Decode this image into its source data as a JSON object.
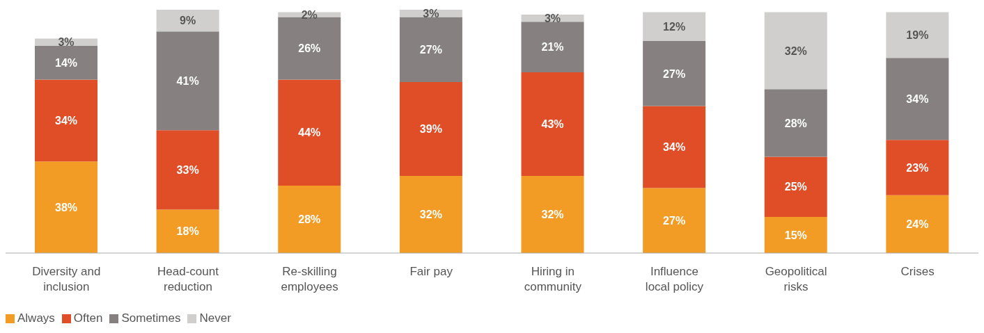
{
  "chart_data": {
    "type": "bar",
    "stacked": true,
    "legend": "bottom left",
    "categories": [
      "Diversity and inclusion",
      "Head-count reduction",
      "Re-skilling employees",
      "Fair pay",
      "Hiring in community",
      "Influence local policy",
      "Geopolitical risks",
      "Crises"
    ],
    "series": [
      {
        "name": "Always",
        "color": "#f39c25",
        "values": [
          38,
          18,
          28,
          32,
          32,
          27,
          15,
          24
        ],
        "value_labels": [
          "38%",
          "18%",
          "28%",
          "32%",
          "32%",
          "27%",
          "15%",
          "24%"
        ]
      },
      {
        "name": "Often",
        "color": "#e04e28",
        "values": [
          34,
          33,
          44,
          39,
          43,
          34,
          25,
          23
        ],
        "value_labels": [
          "34%",
          "33%",
          "44%",
          "39%",
          "43%",
          "34%",
          "25%",
          "23%"
        ]
      },
      {
        "name": "Sometimes",
        "color": "#868180",
        "values": [
          14,
          41,
          26,
          27,
          21,
          27,
          28,
          34
        ],
        "value_labels": [
          "14%",
          "41%",
          "26%",
          "27%",
          "21%",
          "27%",
          "28%",
          "34%"
        ]
      },
      {
        "name": "Never",
        "color": "#d0cfcd",
        "values": [
          3,
          9,
          2,
          3,
          3,
          12,
          32,
          19
        ],
        "value_labels": [
          "3%",
          "9%",
          "2%",
          "3%",
          "3%",
          "12%",
          "32%",
          "19%"
        ]
      }
    ]
  }
}
